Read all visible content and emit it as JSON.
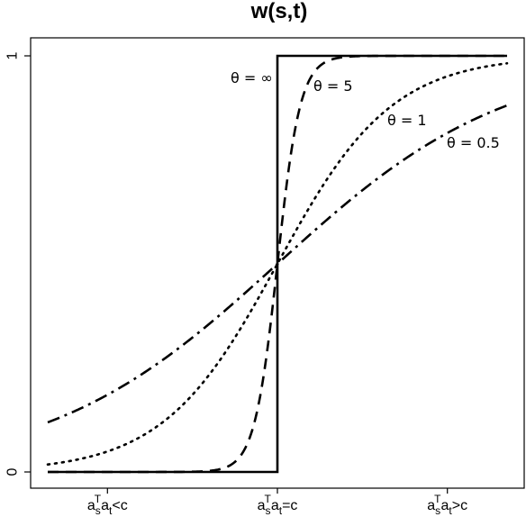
{
  "chart_data": {
    "type": "line",
    "title": "w(s,t)",
    "xlabel": "",
    "ylabel": "",
    "ylim": [
      0,
      1
    ],
    "yticks": [
      "0",
      "1"
    ],
    "xticks": [
      {
        "base": "a",
        "sub1": "s",
        "sup": "T",
        "mid": "a",
        "sub2": "t",
        "rel": "<c"
      },
      {
        "base": "a",
        "sub1": "s",
        "sup": "T",
        "mid": "a",
        "sub2": "t",
        "rel": "=c"
      },
      {
        "base": "a",
        "sub1": "s",
        "sup": "T",
        "mid": "a",
        "sub2": "t",
        "rel": ">c"
      }
    ],
    "series": [
      {
        "label": "θ = ∞",
        "theta": null,
        "style": "solid",
        "x": [
          -1,
          0,
          0,
          1
        ],
        "y": [
          0,
          0,
          1,
          1
        ]
      },
      {
        "label": "θ = 5",
        "theta": 5,
        "style": "dashed",
        "x": [
          -1,
          -0.4,
          -0.2,
          0,
          0.2,
          0.4,
          1
        ],
        "y": [
          0.0,
          0.001,
          0.02,
          0.5,
          0.98,
          0.999,
          1.0
        ]
      },
      {
        "label": "θ = 1",
        "theta": 1,
        "style": "dotted",
        "x": [
          -1,
          -0.5,
          0,
          0.5,
          1
        ],
        "y": [
          0.02,
          0.14,
          0.5,
          0.86,
          0.98
        ]
      },
      {
        "label": "θ = 0.5",
        "theta": 0.5,
        "style": "dotdash",
        "x": [
          -1,
          -0.5,
          0,
          0.5,
          1
        ],
        "y": [
          0.12,
          0.27,
          0.5,
          0.73,
          0.88
        ]
      }
    ]
  }
}
